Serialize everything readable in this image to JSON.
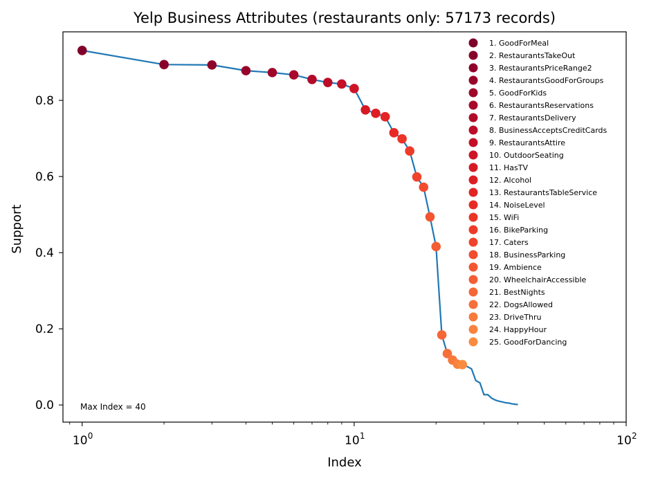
{
  "chart_data": {
    "type": "line",
    "title": "Yelp Business Attributes (restaurants only: 57173 records)",
    "xlabel": "Index",
    "ylabel": "Support",
    "xscale": "log",
    "xlim": [
      0.85,
      100
    ],
    "ylim": [
      -0.045,
      0.98
    ],
    "x_ticks": [
      {
        "value": 1,
        "base": "10",
        "exp": "0"
      },
      {
        "value": 10,
        "base": "10",
        "exp": "1"
      },
      {
        "value": 100,
        "base": "10",
        "exp": "2"
      }
    ],
    "y_ticks": [
      {
        "value": 0.0,
        "label": "0.0"
      },
      {
        "value": 0.2,
        "label": "0.2"
      },
      {
        "value": 0.4,
        "label": "0.4"
      },
      {
        "value": 0.6,
        "label": "0.6"
      },
      {
        "value": 0.8,
        "label": "0.8"
      }
    ],
    "grid": false,
    "legend_position": "top-right",
    "annotation": "Max Index = 40",
    "line_color": "#1f77b4",
    "line": {
      "x": [
        1,
        2,
        3,
        4,
        5,
        6,
        7,
        8,
        9,
        10,
        11,
        12,
        13,
        14,
        15,
        16,
        17,
        18,
        19,
        20,
        21,
        22,
        23,
        24,
        25,
        26,
        27,
        28,
        29,
        30,
        31,
        32,
        33,
        34,
        35,
        36,
        37,
        38,
        39,
        40
      ],
      "y": [
        0.931,
        0.894,
        0.893,
        0.878,
        0.873,
        0.867,
        0.855,
        0.847,
        0.843,
        0.831,
        0.775,
        0.766,
        0.757,
        0.715,
        0.699,
        0.667,
        0.599,
        0.572,
        0.494,
        0.416,
        0.184,
        0.135,
        0.118,
        0.107,
        0.106,
        0.101,
        0.095,
        0.064,
        0.058,
        0.027,
        0.027,
        0.018,
        0.013,
        0.01,
        0.008,
        0.006,
        0.005,
        0.003,
        0.002,
        0.001
      ]
    },
    "points": [
      {
        "x": 1,
        "y": 0.931,
        "label": "1. GoodForMeal",
        "color": "#7f0028"
      },
      {
        "x": 2,
        "y": 0.894,
        "label": "2. RestaurantsTakeOut",
        "color": "#87002a"
      },
      {
        "x": 3,
        "y": 0.893,
        "label": "3. RestaurantsPriceRange2",
        "color": "#8f022a"
      },
      {
        "x": 4,
        "y": 0.878,
        "label": "4. RestaurantsGoodForGroups",
        "color": "#97042a"
      },
      {
        "x": 5,
        "y": 0.873,
        "label": "5. GoodForKids",
        "color": "#9f062a"
      },
      {
        "x": 6,
        "y": 0.867,
        "label": "6. RestaurantsReservations",
        "color": "#a8082a"
      },
      {
        "x": 7,
        "y": 0.855,
        "label": "7. RestaurantsDelivery",
        "color": "#b20a29"
      },
      {
        "x": 8,
        "y": 0.847,
        "label": "8. BusinessAcceptsCreditCards",
        "color": "#bb0c28"
      },
      {
        "x": 9,
        "y": 0.843,
        "label": "9. RestaurantsAttire",
        "color": "#c40f27"
      },
      {
        "x": 10,
        "y": 0.831,
        "label": "10. OutdoorSeating",
        "color": "#cd1426"
      },
      {
        "x": 11,
        "y": 0.775,
        "label": "11. HasTV",
        "color": "#d51925"
      },
      {
        "x": 12,
        "y": 0.766,
        "label": "12. Alcohol",
        "color": "#dc1e24"
      },
      {
        "x": 13,
        "y": 0.757,
        "label": "13. RestaurantsTableService",
        "color": "#e22424"
      },
      {
        "x": 14,
        "y": 0.715,
        "label": "14. NoiseLevel",
        "color": "#e72b24"
      },
      {
        "x": 15,
        "y": 0.699,
        "label": "15. WiFi",
        "color": "#eb3326"
      },
      {
        "x": 16,
        "y": 0.667,
        "label": "16. BikeParking",
        "color": "#ee3b28"
      },
      {
        "x": 17,
        "y": 0.599,
        "label": "17. Caters",
        "color": "#f0432b"
      },
      {
        "x": 18,
        "y": 0.572,
        "label": "18. BusinessParking",
        "color": "#f24c2e"
      },
      {
        "x": 19,
        "y": 0.494,
        "label": "19. Ambience",
        "color": "#f35531"
      },
      {
        "x": 20,
        "y": 0.416,
        "label": "20. WheelchairAccessible",
        "color": "#f45e34"
      },
      {
        "x": 21,
        "y": 0.184,
        "label": "21. BestNights",
        "color": "#f56737"
      },
      {
        "x": 22,
        "y": 0.135,
        "label": "22. DogsAllowed",
        "color": "#f6703a"
      },
      {
        "x": 23,
        "y": 0.118,
        "label": "23. DriveThru",
        "color": "#f7793c"
      },
      {
        "x": 24,
        "y": 0.107,
        "label": "24. HappyHour",
        "color": "#f8823e"
      },
      {
        "x": 25,
        "y": 0.106,
        "label": "25. GoodForDancing",
        "color": "#f98b40"
      }
    ]
  }
}
